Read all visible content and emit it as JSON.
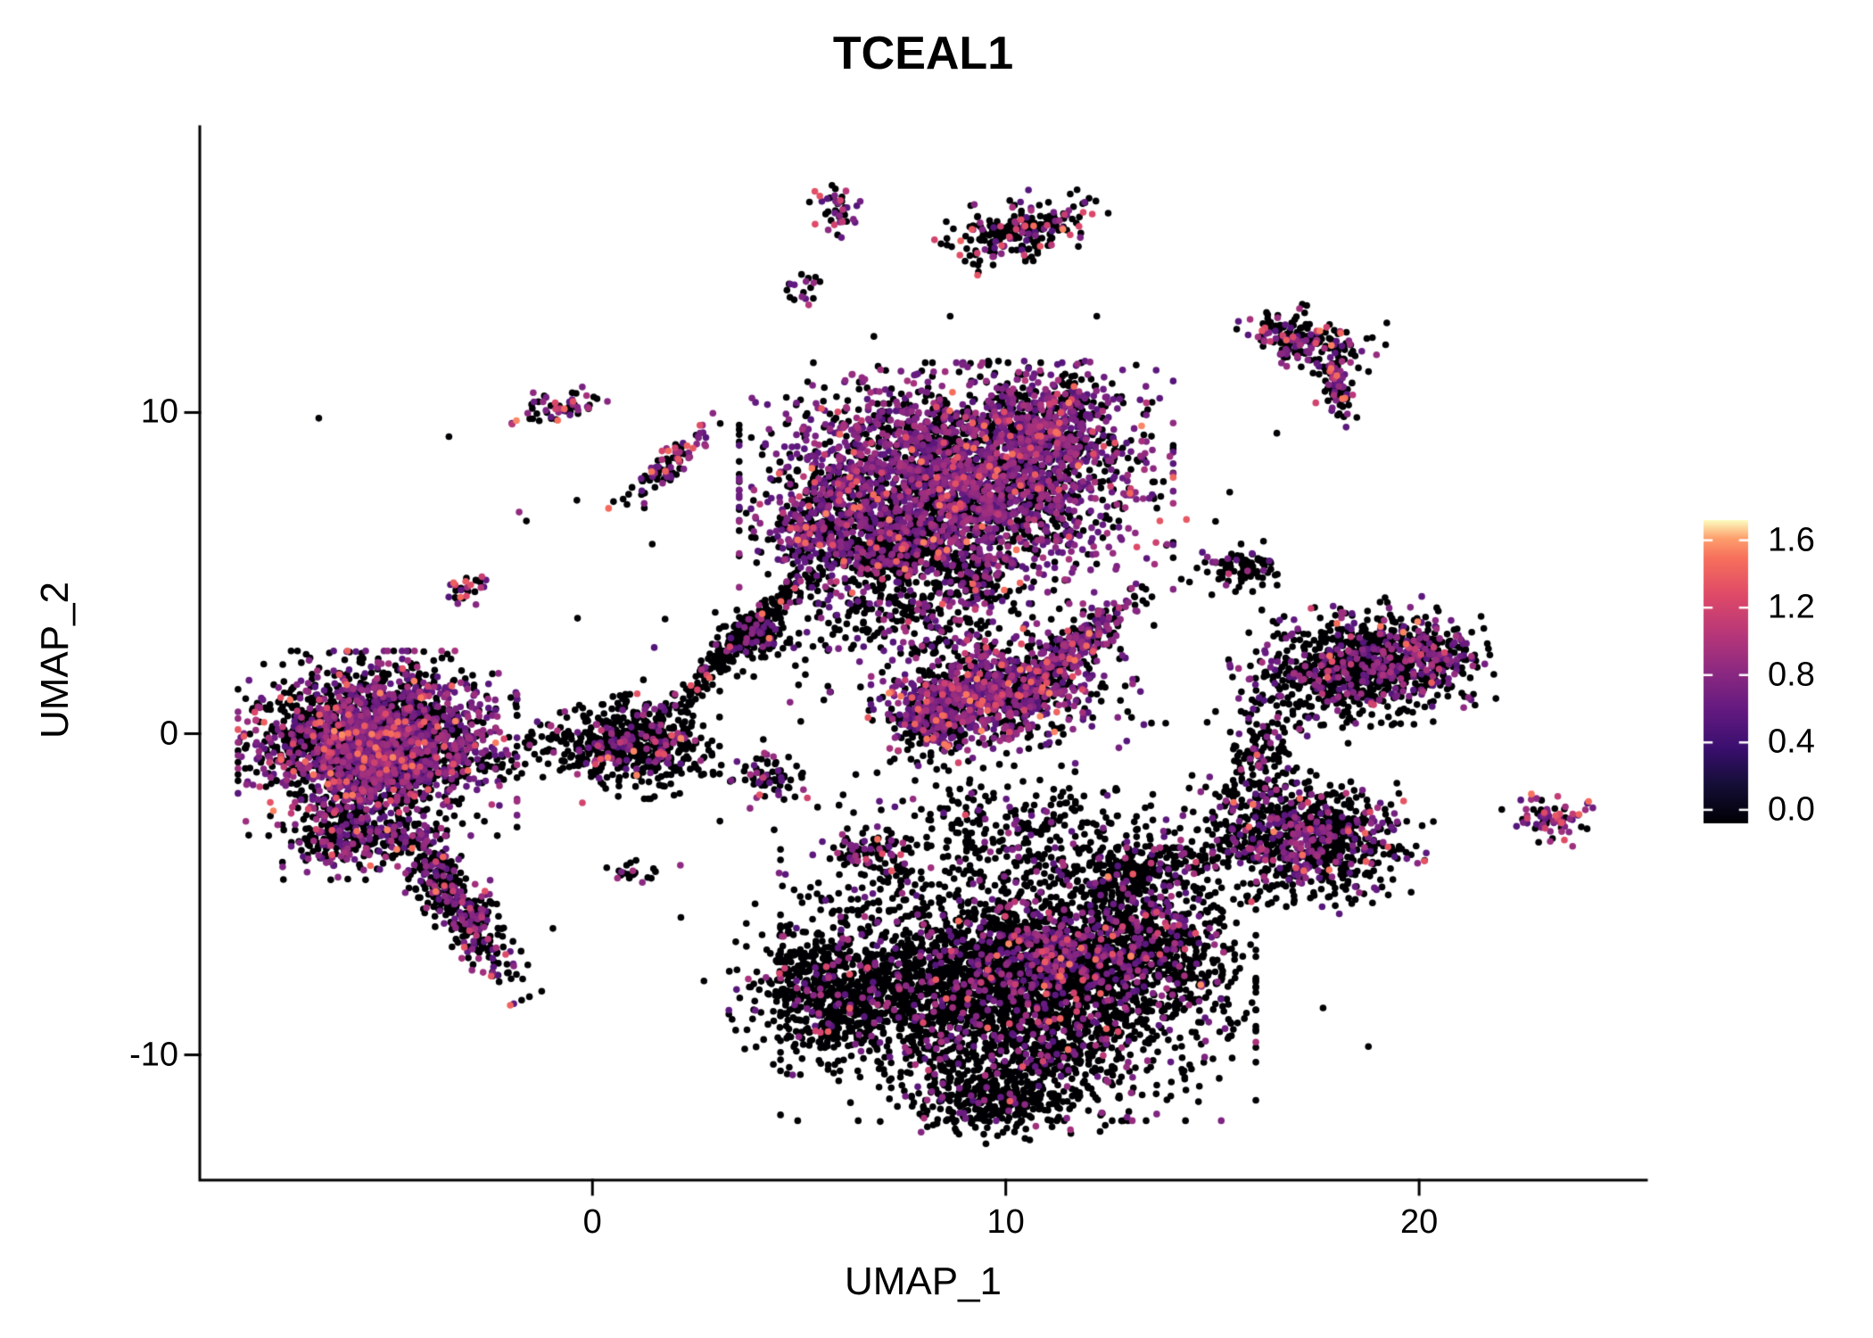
{
  "chart_data": {
    "type": "scatter",
    "title": "TCEAL1",
    "xlabel": "UMAP_1",
    "ylabel": "UMAP_2",
    "x_ticks": [
      0,
      10,
      20
    ],
    "y_ticks": [
      -10,
      0,
      10
    ],
    "xlim": [
      -9.5,
      25.5
    ],
    "ylim": [
      -13.9,
      18.9
    ],
    "grid": false,
    "legend_position": "right",
    "point_radius_px": 3.8,
    "zero_color": "#000004",
    "colorbar": {
      "ticks": [
        1.6,
        1.2,
        0.8,
        0.4,
        0.0
      ],
      "domain": [
        0,
        1.7
      ],
      "palette": "magma",
      "stops": [
        {
          "t": 0.0,
          "c": "#000004"
        },
        {
          "t": 0.125,
          "c": "#140e36"
        },
        {
          "t": 0.25,
          "c": "#3b0f70"
        },
        {
          "t": 0.375,
          "c": "#641a80"
        },
        {
          "t": 0.5,
          "c": "#8c2981"
        },
        {
          "t": 0.625,
          "c": "#b73779"
        },
        {
          "t": 0.75,
          "c": "#de4968"
        },
        {
          "t": 0.875,
          "c": "#f7705c"
        },
        {
          "t": 0.94,
          "c": "#fe9f6d"
        },
        {
          "t": 1.0,
          "c": "#fcfdbf"
        }
      ]
    },
    "cluster_fields": [
      "center_x",
      "center_y",
      "sd_x",
      "sd_y",
      "rot_deg",
      "n_cells",
      "frac_positive",
      "frac_hot"
    ],
    "clusters": [
      [
        -5.2,
        -0.3,
        1.35,
        1.15,
        0,
        2600,
        0.42,
        0.05
      ],
      [
        -3.5,
        -5.0,
        1.5,
        0.35,
        -60,
        450,
        0.3,
        0.04
      ],
      [
        -6.0,
        -3.3,
        0.6,
        0.5,
        0,
        200,
        0.35,
        0.04
      ],
      [
        1.2,
        -0.4,
        0.75,
        0.65,
        0,
        450,
        0.12,
        0.02
      ],
      [
        -0.3,
        -0.2,
        1.0,
        0.45,
        10,
        150,
        0.15,
        0.01
      ],
      [
        3.4,
        2.7,
        1.5,
        0.18,
        52,
        260,
        0.1,
        0.01
      ],
      [
        3.9,
        3.1,
        0.35,
        0.3,
        0,
        120,
        0.12,
        0.01
      ],
      [
        8.8,
        7.8,
        2.1,
        1.5,
        0,
        2900,
        0.5,
        0.04
      ],
      [
        10.9,
        9.6,
        1.0,
        0.8,
        0,
        500,
        0.55,
        0.05
      ],
      [
        7.5,
        5.7,
        0.8,
        0.55,
        0,
        350,
        0.1,
        0.02
      ],
      [
        5.6,
        6.3,
        0.7,
        0.8,
        0,
        300,
        0.45,
        0.05
      ],
      [
        7.5,
        3.8,
        1.6,
        1.0,
        0,
        350,
        0.25,
        0.04
      ],
      [
        9.9,
        1.3,
        1.3,
        0.75,
        15,
        900,
        0.45,
        0.07
      ],
      [
        8.3,
        0.6,
        0.45,
        0.6,
        0,
        250,
        0.5,
        0.09
      ],
      [
        11.8,
        2.9,
        0.9,
        0.22,
        48,
        220,
        0.5,
        0.05
      ],
      [
        9.2,
        4.7,
        0.35,
        0.3,
        0,
        70,
        0.15,
        0.01
      ],
      [
        15.6,
        5.2,
        0.45,
        0.35,
        0,
        90,
        0.1,
        0.01
      ],
      [
        18.6,
        2.1,
        1.25,
        0.8,
        10,
        950,
        0.22,
        0.02
      ],
      [
        20.3,
        2.4,
        0.4,
        0.45,
        0,
        120,
        0.5,
        0.04
      ],
      [
        17.2,
        -3.3,
        1.2,
        0.85,
        -10,
        850,
        0.25,
        0.03
      ],
      [
        16.2,
        -0.9,
        0.45,
        0.8,
        0,
        120,
        0.2,
        0.01
      ],
      [
        23.3,
        -2.6,
        0.45,
        0.35,
        -20,
        70,
        0.5,
        0.12
      ],
      [
        17.3,
        12.3,
        0.75,
        0.4,
        -15,
        200,
        0.3,
        0.06
      ],
      [
        18.0,
        10.9,
        0.55,
        0.15,
        -80,
        90,
        0.3,
        0.08
      ],
      [
        6.0,
        16.3,
        0.3,
        0.45,
        0,
        40,
        0.4,
        0.12
      ],
      [
        10.4,
        15.7,
        0.85,
        0.45,
        20,
        230,
        0.15,
        0.06
      ],
      [
        5.1,
        13.9,
        0.22,
        0.22,
        0,
        18,
        0.3,
        0.02
      ],
      [
        -3.0,
        4.5,
        0.3,
        0.25,
        0,
        30,
        0.4,
        0.15
      ],
      [
        -0.8,
        10.2,
        0.5,
        0.25,
        15,
        55,
        0.4,
        0.12
      ],
      [
        1.9,
        8.4,
        0.8,
        0.2,
        55,
        90,
        0.35,
        0.1
      ],
      [
        10.3,
        -7.8,
        2.3,
        1.7,
        0,
        3200,
        0.13,
        0.015
      ],
      [
        5.8,
        -8.0,
        1.0,
        1.0,
        0,
        600,
        0.12,
        0.015
      ],
      [
        9.8,
        -11.3,
        1.2,
        0.6,
        0,
        350,
        0.08,
        0.005
      ],
      [
        13.6,
        -6.6,
        0.9,
        0.9,
        0,
        500,
        0.2,
        0.03
      ],
      [
        13.2,
        -4.3,
        0.9,
        0.5,
        20,
        250,
        0.15,
        0.01
      ],
      [
        10.5,
        -3.0,
        1.8,
        0.8,
        0,
        280,
        0.12,
        0.02
      ],
      [
        11.0,
        -6.8,
        0.8,
        0.6,
        0,
        250,
        0.45,
        0.04
      ],
      [
        4.3,
        -1.3,
        0.4,
        0.3,
        0,
        70,
        0.3,
        0.04
      ],
      [
        6.5,
        -3.7,
        0.45,
        0.3,
        20,
        70,
        0.3,
        0.08
      ],
      [
        7.3,
        -4.3,
        0.2,
        0.2,
        0,
        25,
        0.2,
        0.01
      ],
      [
        0.9,
        -4.3,
        0.25,
        0.2,
        0,
        20,
        0.2,
        0.01
      ],
      [
        7.0,
        0.5,
        6.0,
        5.0,
        0,
        160,
        0.15,
        0.02
      ]
    ],
    "highlight_points": [
      [
        -2.45,
        -7.55,
        1.35
      ],
      [
        2.6,
        9.6,
        1.3
      ],
      [
        -0.9,
        10.3,
        1.25
      ],
      [
        6.0,
        16.6,
        1.2
      ],
      [
        9.9,
        15.2,
        1.3
      ],
      [
        16.7,
        12.4,
        1.2
      ],
      [
        23.4,
        -2.5,
        1.25
      ],
      [
        7.8,
        0.3,
        1.4
      ],
      [
        9.1,
        2.3,
        1.3
      ],
      [
        13.4,
        -7.0,
        1.2
      ],
      [
        4.8,
        6.4,
        1.3
      ],
      [
        6.9,
        7.3,
        1.45
      ],
      [
        10.6,
        8.9,
        1.3
      ],
      [
        12.1,
        9.4,
        1.25
      ],
      [
        -4.8,
        0.2,
        1.3
      ],
      [
        -3.4,
        -1.2,
        1.25
      ],
      [
        8.6,
        -0.4,
        1.5
      ],
      [
        9.4,
        0.9,
        1.35
      ],
      [
        2.0,
        8.9,
        1.2
      ],
      [
        17.5,
        10.3,
        1.2
      ],
      [
        5.2,
        -2.0,
        1.2
      ],
      [
        8.0,
        -9.0,
        1.25
      ],
      [
        10.9,
        -10.2,
        1.2
      ],
      [
        14.6,
        -4.0,
        1.2
      ],
      [
        18.9,
        0.9,
        1.2
      ],
      [
        -6.2,
        -2.0,
        1.3
      ],
      [
        -2.6,
        -4.9,
        1.3
      ]
    ]
  }
}
